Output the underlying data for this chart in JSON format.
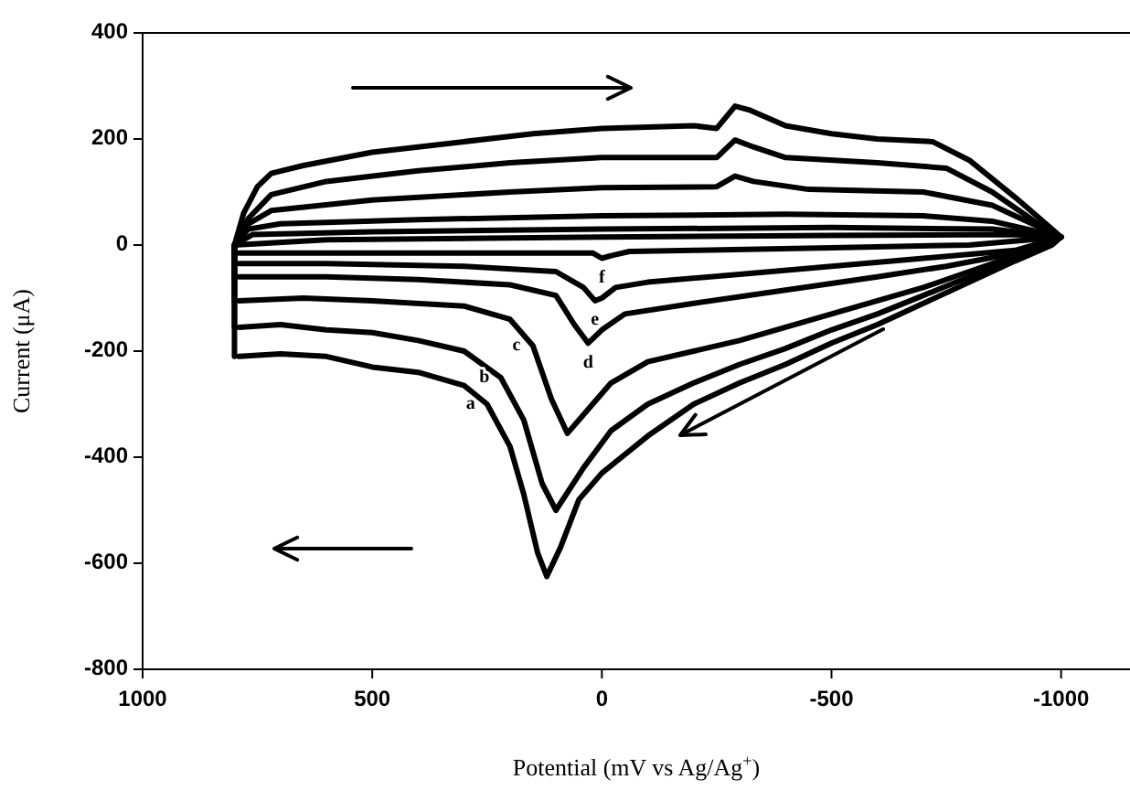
{
  "chart_data": {
    "type": "line",
    "xlabel": "Potential (mV vs Ag/Ag$^{+}$)",
    "ylabel": "Current (μA)",
    "xlim": [
      1000,
      -1150
    ],
    "xticks": [
      1000,
      500,
      0,
      -500,
      -1000
    ],
    "ylim": [
      -800,
      400
    ],
    "yticks": [
      -800,
      -600,
      -400,
      -200,
      0,
      200,
      400
    ],
    "marker": "none",
    "annotations": [
      {
        "text": "a",
        "x": 250,
        "y": -300
      },
      {
        "text": "b",
        "x": 220,
        "y": -250
      },
      {
        "text": "c",
        "x": 150,
        "y": -190
      },
      {
        "text": "d",
        "x": 30,
        "y": -185
      },
      {
        "text": "e",
        "x": 15,
        "y": -105
      },
      {
        "text": "f",
        "x": 0,
        "y": -25
      }
    ],
    "line_style": "solid",
    "series": [
      {
        "color": "#000000",
        "x": [
          800,
          800,
          800,
          780,
          750,
          720,
          650,
          500,
          300,
          150,
          0,
          -200,
          -250,
          -290,
          -320,
          -400,
          -500,
          -600,
          -720,
          -800,
          -900,
          -980,
          -1000,
          -980,
          -900,
          -800,
          -700,
          -600,
          -500,
          -400,
          -300,
          -200,
          -100,
          0,
          50,
          90,
          120,
          140,
          170,
          200,
          250,
          300,
          400,
          500,
          600,
          700,
          790
        ],
        "values": [
          -210,
          -100,
          0,
          60,
          110,
          135,
          150,
          175,
          195,
          210,
          220,
          225,
          220,
          262,
          255,
          225,
          210,
          200,
          195,
          160,
          90,
          30,
          15,
          0,
          -30,
          -70,
          -110,
          -150,
          -185,
          -225,
          -260,
          -300,
          -360,
          -430,
          -480,
          -570,
          -625,
          -580,
          -470,
          -380,
          -300,
          -265,
          -240,
          -230,
          -210,
          -205,
          -210
        ]
      },
      {
        "color": "#000000",
        "x": [
          800,
          800,
          770,
          720,
          600,
          400,
          200,
          0,
          -250,
          -290,
          -330,
          -400,
          -600,
          -750,
          -850,
          -950,
          -1000,
          -900,
          -800,
          -700,
          -600,
          -500,
          -400,
          -300,
          -200,
          -100,
          -20,
          40,
          100,
          130,
          170,
          220,
          300,
          400,
          500,
          600,
          700,
          790
        ],
        "values": [
          -155,
          0,
          50,
          95,
          120,
          140,
          155,
          165,
          165,
          198,
          185,
          165,
          155,
          145,
          100,
          40,
          15,
          -25,
          -60,
          -95,
          -130,
          -160,
          -195,
          -225,
          -260,
          -300,
          -350,
          -420,
          -500,
          -450,
          -330,
          -250,
          -200,
          -180,
          -165,
          -160,
          -150,
          -155
        ]
      },
      {
        "color": "#000000",
        "x": [
          800,
          800,
          770,
          720,
          500,
          200,
          0,
          -250,
          -290,
          -330,
          -450,
          -700,
          -850,
          -950,
          -1000,
          -900,
          -800,
          -700,
          -600,
          -500,
          -400,
          -300,
          -200,
          -100,
          -20,
          30,
          75,
          110,
          150,
          200,
          300,
          500,
          650,
          790
        ],
        "values": [
          -105,
          0,
          40,
          65,
          85,
          100,
          108,
          110,
          130,
          120,
          105,
          100,
          75,
          35,
          15,
          -20,
          -50,
          -80,
          -105,
          -130,
          -155,
          -180,
          -200,
          -220,
          -260,
          -310,
          -355,
          -290,
          -190,
          -140,
          -115,
          -105,
          -100,
          -105
        ]
      },
      {
        "color": "#000000",
        "x": [
          800,
          800,
          770,
          700,
          400,
          0,
          -400,
          -700,
          -850,
          -950,
          -1000,
          -900,
          -750,
          -600,
          -400,
          -200,
          -50,
          0,
          30,
          60,
          100,
          200,
          400,
          600,
          790
        ],
        "values": [
          -60,
          0,
          30,
          40,
          48,
          55,
          58,
          55,
          45,
          25,
          15,
          -15,
          -40,
          -60,
          -85,
          -110,
          -130,
          -160,
          -185,
          -150,
          -95,
          -75,
          -65,
          -60,
          -60
        ]
      },
      {
        "color": "#000000",
        "x": [
          800,
          800,
          760,
          500,
          0,
          -500,
          -850,
          -1000,
          -900,
          -700,
          -500,
          -300,
          -100,
          -30,
          0,
          15,
          40,
          100,
          300,
          600,
          790
        ],
        "values": [
          -35,
          0,
          20,
          25,
          30,
          33,
          30,
          15,
          -10,
          -25,
          -40,
          -55,
          -70,
          -80,
          -100,
          -105,
          -80,
          -50,
          -40,
          -35,
          -35
        ]
      },
      {
        "color": "#000000",
        "x": [
          800,
          800,
          600,
          0,
          -500,
          -900,
          -1000,
          -800,
          -500,
          -200,
          -60,
          -20,
          0,
          20,
          100,
          400,
          790
        ],
        "values": [
          -15,
          0,
          10,
          15,
          18,
          20,
          15,
          0,
          -5,
          -10,
          -12,
          -20,
          -25,
          -15,
          -15,
          -15,
          -15
        ]
      }
    ]
  }
}
